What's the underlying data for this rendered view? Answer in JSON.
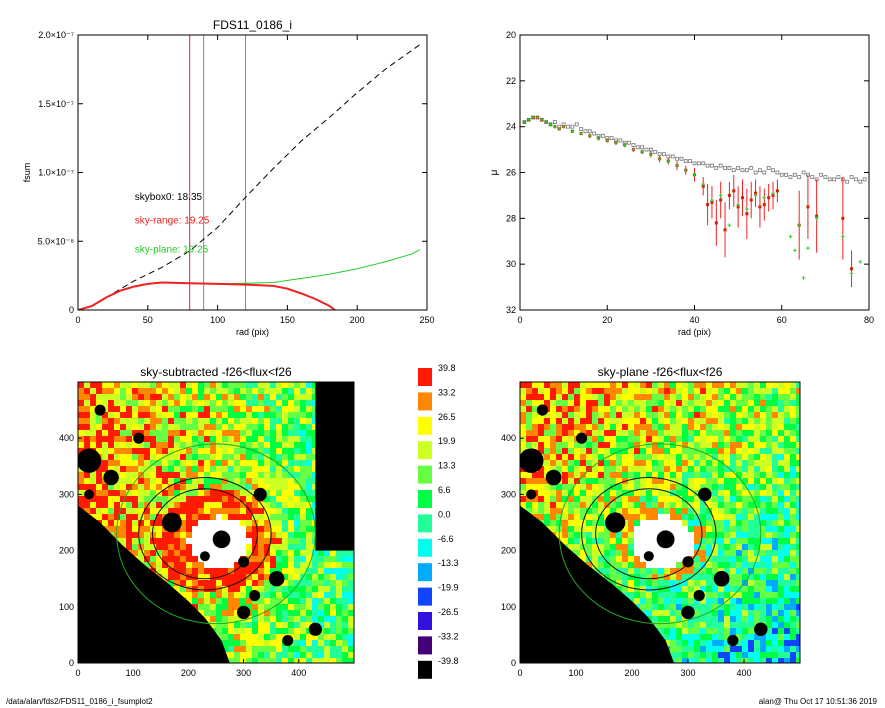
{
  "footer": {
    "path": "/data/alan/fds2/FDS11_0186_i_fsumplot2",
    "stamp": "alan@  Thu Oct 17 10:51:36 2019"
  },
  "colors": {
    "black": "#000000",
    "red": "#ee2222",
    "green": "#22cc22",
    "gray": "#888888",
    "orange_line": "#8a5a00"
  },
  "chart_data": [
    {
      "id": "fsum_profile",
      "type": "line",
      "title": "FDS11_0186_i",
      "xlabel": "rad (pix)",
      "ylabel": "fsum",
      "xlim": [
        0,
        250
      ],
      "ylim": [
        0,
        2e-07
      ],
      "xticks": [
        "0",
        "50",
        "100",
        "150",
        "200",
        "250"
      ],
      "yticks": [
        "0",
        "5.0×10⁻⁸",
        "1.0×10⁻⁷",
        "1.5×10⁻⁷",
        "2.0×10⁻⁷"
      ],
      "ytick_values": [
        0,
        5e-08,
        1e-07,
        1.5e-07,
        2e-07
      ],
      "vlines": [
        {
          "x": 80,
          "color": "red"
        },
        {
          "x": 90,
          "color": "gray"
        },
        {
          "x": 120,
          "color": "gray"
        }
      ],
      "annotations": [
        {
          "text": "skybox0: 18.35",
          "color": "black",
          "x": 50,
          "y": 8e-08
        },
        {
          "text": "sky-range: 19.25",
          "color": "red",
          "x": 50,
          "y": 6.3e-08
        },
        {
          "text": "sky-plane: 19.25",
          "color": "green",
          "x": 50,
          "y": 4.2e-08
        }
      ],
      "series": [
        {
          "style": "dashed",
          "color": "black",
          "x": [
            0,
            10,
            20,
            40,
            60,
            80,
            100,
            120,
            140,
            160,
            180,
            200,
            220,
            245
          ],
          "y": [
            0,
            3e-09,
            9e-09,
            2.1e-08,
            3.1e-08,
            4.3e-08,
            6e-08,
            8.2e-08,
            1.03e-07,
            1.23e-07,
            1.4e-07,
            1.58e-07,
            1.75e-07,
            1.93e-07
          ]
        },
        {
          "style": "solid",
          "color": "green",
          "x": [
            0,
            10,
            20,
            30,
            40,
            50,
            60,
            80,
            100,
            120,
            140,
            160,
            180,
            200,
            220,
            240,
            245
          ],
          "y": [
            0,
            3e-09,
            9e-09,
            1.4e-08,
            1.7e-08,
            1.9e-08,
            2e-08,
            1.95e-08,
            1.9e-08,
            1.95e-08,
            2e-08,
            2.3e-08,
            2.6e-08,
            3e-08,
            3.5e-08,
            4.1e-08,
            4.4e-08
          ]
        },
        {
          "style": "solid",
          "color": "red",
          "x": [
            0,
            10,
            20,
            30,
            40,
            50,
            60,
            80,
            100,
            120,
            140,
            150,
            160,
            170,
            180,
            184
          ],
          "y": [
            0,
            3e-09,
            9e-09,
            1.4e-08,
            1.7e-08,
            1.9e-08,
            2e-08,
            1.95e-08,
            1.9e-08,
            1.85e-08,
            1.75e-08,
            1.55e-08,
            1.2e-08,
            8e-09,
            3e-09,
            0
          ]
        }
      ]
    },
    {
      "id": "surface_brightness",
      "type": "scatter",
      "title": "",
      "xlabel": "rad (pix)",
      "ylabel": "μ",
      "xlim": [
        0,
        80
      ],
      "ylim": [
        32,
        20
      ],
      "xticks": [
        "0",
        "20",
        "40",
        "60",
        "80"
      ],
      "yticks": [
        "20",
        "22",
        "24",
        "26",
        "28",
        "30",
        "32"
      ],
      "series": [
        {
          "marker": "square",
          "color": "gray",
          "x": [
            1,
            2,
            3,
            4,
            5,
            6,
            7,
            8,
            9,
            10,
            11,
            12,
            13,
            14,
            15,
            16,
            17,
            18,
            19,
            20,
            21,
            22,
            23,
            24,
            25,
            26,
            27,
            28,
            29,
            30,
            31,
            32,
            33,
            34,
            35,
            36,
            37,
            38,
            39,
            40,
            41,
            42,
            43,
            44,
            45,
            46,
            47,
            48,
            49,
            50,
            51,
            52,
            53,
            54,
            55,
            56,
            57,
            58,
            59,
            60,
            61,
            62,
            63,
            64,
            65,
            66,
            67,
            68,
            69,
            70,
            71,
            72,
            73,
            74,
            75,
            76,
            77,
            78,
            79
          ],
          "y": [
            23.8,
            23.7,
            23.6,
            23.6,
            23.7,
            23.8,
            23.9,
            23.8,
            24.0,
            23.9,
            24.0,
            24.0,
            23.9,
            24.1,
            24.2,
            24.2,
            24.3,
            24.4,
            24.4,
            24.5,
            24.5,
            24.6,
            24.6,
            24.7,
            24.7,
            24.8,
            24.9,
            24.9,
            25.0,
            25.0,
            25.1,
            25.2,
            25.2,
            25.3,
            25.3,
            25.4,
            25.4,
            25.5,
            25.5,
            25.6,
            25.6,
            25.6,
            25.7,
            25.7,
            25.8,
            25.7,
            25.8,
            25.8,
            25.9,
            25.8,
            25.9,
            25.9,
            25.8,
            26.0,
            25.9,
            26.0,
            25.8,
            25.9,
            26.0,
            26.1,
            26.1,
            26.2,
            26.1,
            26.2,
            26.0,
            26.1,
            26.2,
            26.3,
            26.1,
            26.2,
            26.3,
            26.3,
            26.2,
            26.3,
            26.4,
            26.2,
            26.3,
            26.4,
            26.3
          ]
        },
        {
          "marker": "square",
          "color": "red",
          "x": [
            1,
            2,
            3,
            4,
            5,
            6,
            7,
            8,
            9,
            10,
            12,
            14,
            16,
            18,
            20,
            22,
            24,
            26,
            28,
            30,
            32,
            34,
            36,
            38,
            40,
            42,
            43,
            44,
            45,
            46,
            47,
            48,
            49,
            50,
            51,
            52,
            53,
            54,
            55,
            56,
            57,
            58,
            59,
            64,
            66,
            68,
            74,
            76
          ],
          "y": [
            23.8,
            23.7,
            23.6,
            23.6,
            23.7,
            23.8,
            23.9,
            24.0,
            24.1,
            24.0,
            24.2,
            24.3,
            24.4,
            24.5,
            24.6,
            24.7,
            24.8,
            25.0,
            25.1,
            25.2,
            25.4,
            25.5,
            25.7,
            25.9,
            26.1,
            26.6,
            27.4,
            27.3,
            28.2,
            27.2,
            28.5,
            27.0,
            26.8,
            27.5,
            27.1,
            27.8,
            27.2,
            26.9,
            27.5,
            27.4,
            27.1,
            27.0,
            26.8,
            28.3,
            27.5,
            27.9,
            28.0,
            30.2
          ],
          "err": [
            0.05,
            0.05,
            0.05,
            0.05,
            0.05,
            0.05,
            0.05,
            0.05,
            0.05,
            0.05,
            0.05,
            0.05,
            0.1,
            0.1,
            0.1,
            0.1,
            0.1,
            0.1,
            0.1,
            0.15,
            0.15,
            0.15,
            0.2,
            0.2,
            0.3,
            0.4,
            0.9,
            0.7,
            1.0,
            0.8,
            1.2,
            0.6,
            0.7,
            0.9,
            0.8,
            1.1,
            0.8,
            0.6,
            0.9,
            0.7,
            0.6,
            0.6,
            0.5,
            1.5,
            1.4,
            1.6,
            1.8,
            0.8
          ]
        },
        {
          "marker": "cross",
          "color": "green",
          "x": [
            1,
            2,
            3,
            4,
            5,
            6,
            7,
            8,
            9,
            10,
            12,
            14,
            16,
            18,
            20,
            22,
            24,
            26,
            28,
            30,
            32,
            34,
            36,
            38,
            40,
            42,
            44,
            46,
            48,
            50,
            52,
            54,
            56,
            58,
            62,
            63,
            64,
            65,
            66,
            68,
            74,
            76,
            78
          ],
          "y": [
            23.8,
            23.7,
            23.6,
            23.6,
            23.7,
            23.8,
            23.9,
            24.0,
            24.1,
            24.0,
            24.2,
            24.3,
            24.4,
            24.5,
            24.6,
            24.7,
            24.8,
            25.0,
            25.1,
            25.2,
            25.4,
            25.5,
            25.7,
            25.9,
            26.1,
            26.5,
            27.2,
            27.0,
            28.3,
            27.4,
            27.6,
            27.0,
            27.1,
            26.9,
            28.8,
            29.4,
            28.3,
            30.6,
            29.3,
            28.0,
            28.8,
            30.4,
            29.9
          ]
        }
      ]
    },
    {
      "id": "sky_subtracted_image",
      "type": "heatmap",
      "title": "sky-subtracted -f26<flux<f26",
      "xlim": [
        0,
        500
      ],
      "ylim": [
        0,
        500
      ],
      "xticks": [
        "0",
        "100",
        "200",
        "300",
        "400"
      ],
      "yticks": [
        "0",
        "100",
        "200",
        "300",
        "400"
      ]
    },
    {
      "id": "sky_plane_image",
      "type": "heatmap",
      "title": "sky-plane -f26<flux<f26",
      "xlim": [
        0,
        500
      ],
      "ylim": [
        0,
        500
      ],
      "xticks": [
        "0",
        "100",
        "200",
        "300",
        "400"
      ],
      "yticks": [
        "0",
        "100",
        "200",
        "300",
        "400"
      ]
    }
  ],
  "colorbar": {
    "labels": [
      "39.8",
      "33.2",
      "26.5",
      "19.9",
      "13.3",
      "6.6",
      "0.0",
      "-6.6",
      "-13.3",
      "-19.9",
      "-26.5",
      "-33.2",
      "-39.8"
    ],
    "colors": [
      "#ff1a00",
      "#ff8800",
      "#ffff00",
      "#ccff22",
      "#66ff44",
      "#00ff44",
      "#22ff99",
      "#00ffee",
      "#00aaff",
      "#1144ff",
      "#3311dd",
      "#440077",
      "#000000"
    ]
  }
}
